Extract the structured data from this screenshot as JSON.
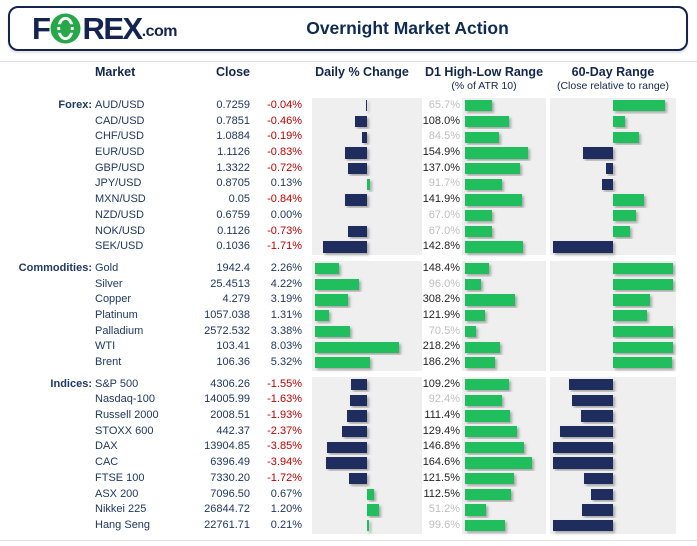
{
  "header": {
    "logo": {
      "f": "F",
      "rex": "REX",
      "com": ".com"
    },
    "title": "Overnight Market Action"
  },
  "columns": {
    "market": "Market",
    "close": "Close",
    "daily": "Daily % Change",
    "d1": {
      "label": "D1 High-Low Range",
      "sub": "(% of ATR 10)"
    },
    "range60": {
      "label": "60-Day Range",
      "sub": "(Close relative to range)"
    }
  },
  "colors": {
    "green": "#21BE5E",
    "navy_bar": "#1F2D5E",
    "negative_red": "#C00000",
    "muted_gray": "#BFBFBF",
    "dark_value": "#262626",
    "panel_bg": "#EFEFEF",
    "brand_navy": "#14234F",
    "logo_green": "#27A848"
  },
  "chart_data": {
    "type": "table",
    "note": "Table with embedded horizontal bar charts. Daily % Change and D1 High-Low Range bars are drawn from the printed values; 60-Day Range bar positions are visual estimates where 0 = 60-day low, 50 = midpoint baseline, 100 = 60-day high.",
    "sections": [
      {
        "label": "Forex:",
        "daily_axis": {
          "min": -2,
          "max": 2
        },
        "d1_axis_max": 200,
        "rows": [
          {
            "market": "AUD/USD",
            "close": "0.7259",
            "daily": "-0.04%",
            "d1": "65.7%",
            "range60_est": 93
          },
          {
            "market": "CAD/USD",
            "close": "0.7851",
            "daily": "-0.46%",
            "d1": "108.0%",
            "range60_est": 60
          },
          {
            "market": "CHF/USD",
            "close": "1.0884",
            "daily": "-0.19%",
            "d1": "84.5%",
            "range60_est": 72
          },
          {
            "market": "EUR/USD",
            "close": "1.1126",
            "daily": "-0.83%",
            "d1": "154.9%",
            "range60_est": 25
          },
          {
            "market": "GBP/USD",
            "close": "1.3322",
            "daily": "-0.72%",
            "d1": "137.0%",
            "range60_est": 44
          },
          {
            "market": "JPY/USD",
            "close": "0.8705",
            "daily": "0.13%",
            "d1": "91.7%",
            "range60_est": 41
          },
          {
            "market": "MXN/USD",
            "close": "0.05",
            "daily": "-0.84%",
            "d1": "141.9%",
            "range60_est": 76
          },
          {
            "market": "NZD/USD",
            "close": "0.6759",
            "daily": "0.00%",
            "d1": "67.0%",
            "range60_est": 69
          },
          {
            "market": "NOK/USD",
            "close": "0.1126",
            "daily": "-0.73%",
            "d1": "67.0%",
            "range60_est": 64
          },
          {
            "market": "SEK/USD",
            "close": "0.1036",
            "daily": "-1.71%",
            "d1": "142.8%",
            "range60_est": 0
          }
        ]
      },
      {
        "label": "Commodities:",
        "daily_axis": {
          "min": 0,
          "max": 10
        },
        "d1_axis_max": 500,
        "rows": [
          {
            "market": "Gold",
            "close": "1942.4",
            "daily": "2.26%",
            "d1": "148.4%",
            "range60_est": 100
          },
          {
            "market": "Silver",
            "close": "25.4513",
            "daily": "4.22%",
            "d1": "96.0%",
            "range60_est": 100
          },
          {
            "market": "Copper",
            "close": "4.279",
            "daily": "3.19%",
            "d1": "308.2%",
            "range60_est": 81
          },
          {
            "market": "Platinum",
            "close": "1057.038",
            "daily": "1.31%",
            "d1": "121.9%",
            "range60_est": 78
          },
          {
            "market": "Palladium",
            "close": "2572.532",
            "daily": "3.38%",
            "d1": "70.5%",
            "range60_est": 100
          },
          {
            "market": "WTI",
            "close": "103.41",
            "daily": "8.03%",
            "d1": "218.2%",
            "range60_est": 100
          },
          {
            "market": "Brent",
            "close": "106.36",
            "daily": "5.32%",
            "d1": "186.2%",
            "range60_est": 99
          }
        ]
      },
      {
        "label": "Indices:",
        "daily_axis": {
          "min": -5,
          "max": 5
        },
        "d1_axis_max": 200,
        "rows": [
          {
            "market": "S&P 500",
            "close": "4306.26",
            "daily": "-1.55%",
            "d1": "109.2%",
            "range60_est": 13
          },
          {
            "market": "Nasdaq-100",
            "close": "14005.99",
            "daily": "-1.63%",
            "d1": "92.4%",
            "range60_est": 16
          },
          {
            "market": "Russell 2000",
            "close": "2008.51",
            "daily": "-1.93%",
            "d1": "111.4%",
            "range60_est": 23
          },
          {
            "market": "STOXX 600",
            "close": "442.37",
            "daily": "-2.37%",
            "d1": "129.4%",
            "range60_est": 6
          },
          {
            "market": "DAX",
            "close": "13904.85",
            "daily": "-3.85%",
            "d1": "146.8%",
            "range60_est": 0
          },
          {
            "market": "CAC",
            "close": "6396.49",
            "daily": "-3.94%",
            "d1": "164.6%",
            "range60_est": 0
          },
          {
            "market": "FTSE 100",
            "close": "7330.20",
            "daily": "-1.72%",
            "d1": "121.5%",
            "range60_est": 26
          },
          {
            "market": "ASX 200",
            "close": "7096.50",
            "daily": "0.67%",
            "d1": "112.5%",
            "range60_est": 32
          },
          {
            "market": "Nikkei 225",
            "close": "26844.72",
            "daily": "1.20%",
            "d1": "51.2%",
            "range60_est": 24
          },
          {
            "market": "Hang Seng",
            "close": "22761.71",
            "daily": "0.21%",
            "d1": "99.6%",
            "range60_est": 0
          }
        ]
      }
    ]
  }
}
